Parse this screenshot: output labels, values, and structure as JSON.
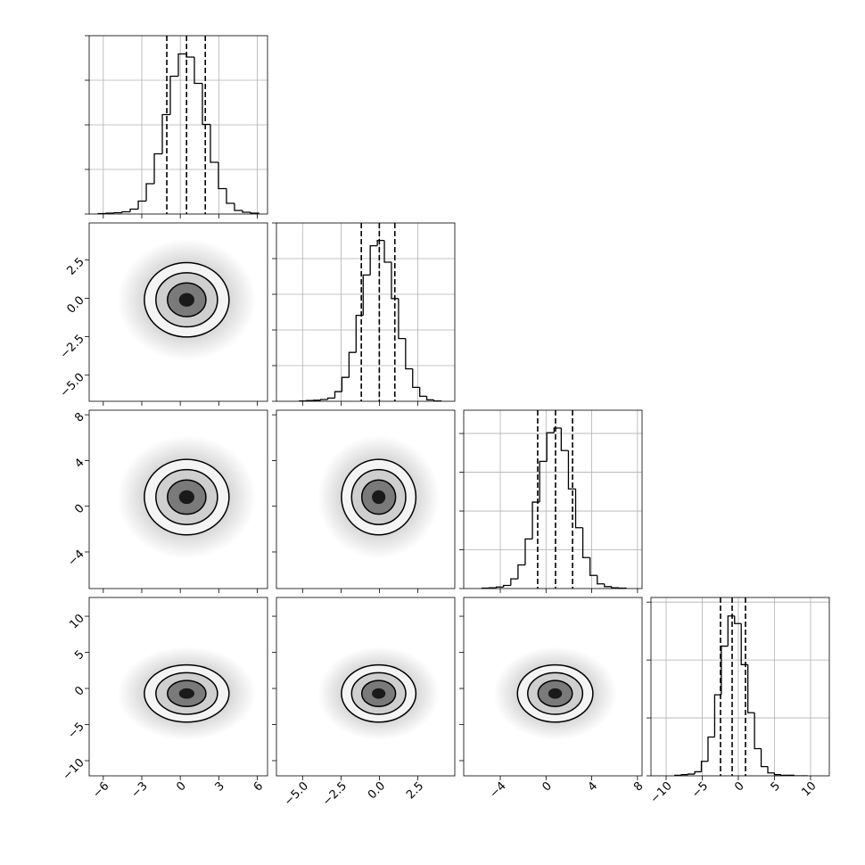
{
  "chart_data": {
    "type": "corner",
    "line_color": "#000000",
    "grid_color": "#b0b0b0",
    "cloud_color": "#8c8c8c",
    "contour_fills": [
      "#f4f4f4",
      "#cfcfcf",
      "#7a7a7a",
      "#1a1a1a"
    ],
    "params": [
      {
        "lim": [
          -7.1,
          6.8
        ],
        "ticks": [
          {
            "value": -6,
            "label": "−6"
          },
          {
            "value": -3,
            "label": "−3"
          },
          0,
          3,
          6
        ]
      },
      {
        "lim": [
          -6.7,
          4.9
        ],
        "ticks": [
          {
            "value": -5,
            "label": "−5.0"
          },
          {
            "value": -2.5,
            "label": "−2.5"
          },
          {
            "value": 0,
            "label": "0.0"
          },
          2.5
        ]
      },
      {
        "lim": [
          -7.2,
          8.4
        ],
        "ticks": [
          {
            "value": -4,
            "label": "−4"
          },
          0,
          4,
          8
        ]
      },
      {
        "lim": [
          -12.1,
          12.6
        ],
        "ticks": [
          {
            "value": -10,
            "label": "−10"
          },
          {
            "value": -5,
            "label": "−5"
          },
          0,
          5,
          10
        ]
      }
    ],
    "diagonal": [
      {
        "bins": [
          -6.4,
          -5.775,
          -5.15,
          -4.525,
          -3.9,
          -3.275,
          -2.65,
          -2.025,
          -1.4,
          -0.775,
          -0.15,
          0.475,
          1.1,
          1.725,
          2.35,
          2.975,
          3.6,
          4.225,
          4.85,
          5.475,
          6.1
        ],
        "counts": [
          0.01,
          0.02,
          0.03,
          0.05,
          0.11,
          0.29,
          0.68,
          1.35,
          2.23,
          3.09,
          3.59,
          3.52,
          2.93,
          2.01,
          1.16,
          0.57,
          0.24,
          0.08,
          0.04,
          0.02
        ],
        "ylim": [
          0,
          4
        ],
        "yticks": [
          0,
          1,
          2,
          3,
          4
        ],
        "quantiles": [
          -1.05,
          0.49,
          1.95
        ]
      },
      {
        "bins": [
          -5.2,
          -4.74,
          -4.28,
          -3.82,
          -3.36,
          -2.9,
          -2.44,
          -1.98,
          -1.52,
          -1.06,
          -0.6,
          -0.14,
          0.32,
          0.78,
          1.24,
          1.7,
          2.16,
          2.62,
          3.08,
          3.54,
          4.0
        ],
        "counts": [
          0.01,
          0.02,
          0.03,
          0.05,
          0.09,
          0.27,
          0.67,
          1.37,
          2.41,
          3.54,
          4.36,
          4.51,
          3.9,
          2.88,
          1.76,
          0.91,
          0.39,
          0.14,
          0.04,
          0.01
        ],
        "ylim": [
          0,
          5
        ],
        "yticks": [
          0,
          1,
          2,
          3,
          4,
          5
        ],
        "quantiles": [
          -1.18,
          -0.01,
          1.0
        ]
      },
      {
        "bins": [
          -5.6,
          -4.97,
          -4.34,
          -3.71,
          -3.08,
          -2.45,
          -1.82,
          -1.19,
          -0.56,
          0.07,
          0.7,
          1.33,
          1.96,
          2.59,
          3.22,
          3.85,
          4.48,
          5.11,
          5.74,
          6.37,
          7.0
        ],
        "counts": [
          0.01,
          0.02,
          0.04,
          0.08,
          0.25,
          0.61,
          1.28,
          2.23,
          3.28,
          4.02,
          4.14,
          3.56,
          2.57,
          1.57,
          0.8,
          0.34,
          0.12,
          0.05,
          0.02,
          0.01
        ],
        "ylim": [
          0,
          4.6
        ],
        "yticks": [
          0,
          1,
          2,
          3,
          4
        ],
        "quantiles": [
          -0.73,
          0.83,
          2.32
        ]
      },
      {
        "bins": [
          -8.8,
          -7.88,
          -6.96,
          -6.04,
          -5.12,
          -4.2,
          -3.28,
          -2.36,
          -1.44,
          -0.52,
          0.4,
          1.32,
          2.24,
          3.16,
          4.08,
          5.0,
          5.92,
          6.84,
          7.76,
          8.68,
          9.6
        ],
        "counts": [
          0.01,
          0.02,
          0.03,
          0.07,
          0.25,
          0.67,
          1.4,
          2.24,
          2.76,
          2.63,
          1.92,
          1.09,
          0.47,
          0.16,
          0.05,
          0.02,
          0.01,
          0.01,
          0,
          0
        ],
        "ylim": [
          0,
          3.08
        ],
        "yticks": [
          0,
          1,
          2,
          3
        ],
        "quantiles": [
          -2.47,
          -0.86,
          0.99
        ]
      }
    ],
    "pairs": [
      {
        "center": [
          0.5,
          -0.1
        ],
        "cloud": [
          5.4,
          3.96
        ],
        "contours": [
          [
            3.3,
            2.42
          ],
          [
            2.4,
            1.76
          ],
          [
            1.5,
            1.1
          ],
          [
            0.6,
            0.44
          ]
        ]
      },
      {
        "center": [
          0.5,
          0.8
        ],
        "cloud": [
          5.4,
          5.4
        ],
        "contours": [
          [
            3.3,
            3.3
          ],
          [
            2.4,
            2.4
          ],
          [
            1.5,
            1.5
          ],
          [
            0.6,
            0.6
          ]
        ]
      },
      {
        "center": [
          -0.05,
          0.8
        ],
        "cloud": [
          3.96,
          5.4
        ],
        "contours": [
          [
            2.42,
            3.3
          ],
          [
            1.76,
            2.4
          ],
          [
            1.1,
            1.5
          ],
          [
            0.44,
            0.6
          ]
        ]
      },
      {
        "center": [
          0.5,
          -0.7
        ],
        "cloud": [
          5.4,
          6.48
        ],
        "contours": [
          [
            3.3,
            3.96
          ],
          [
            2.4,
            2.88
          ],
          [
            1.5,
            1.8
          ],
          [
            0.6,
            0.72
          ]
        ]
      },
      {
        "center": [
          -0.05,
          -0.7
        ],
        "cloud": [
          3.96,
          6.48
        ],
        "contours": [
          [
            2.42,
            3.96
          ],
          [
            1.76,
            2.88
          ],
          [
            1.1,
            1.8
          ],
          [
            0.44,
            0.72
          ]
        ]
      },
      {
        "center": [
          0.8,
          -0.7
        ],
        "cloud": [
          5.4,
          6.48
        ],
        "contours": [
          [
            3.3,
            3.96
          ],
          [
            2.4,
            2.88
          ],
          [
            1.5,
            1.8
          ],
          [
            0.6,
            0.72
          ]
        ]
      }
    ]
  }
}
